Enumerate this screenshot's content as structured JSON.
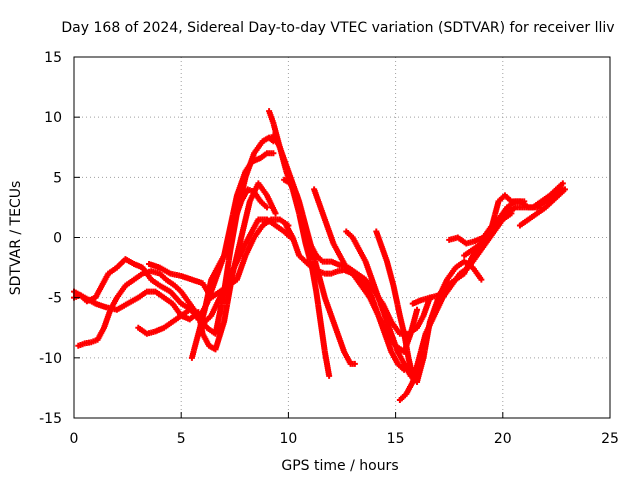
{
  "chart_data": {
    "type": "scatter",
    "title": "Day 168 of 2024, Sidereal Day-to-day VTEC variation (SDTVAR) for receiver lliv",
    "xlabel": "GPS time / hours",
    "ylabel": "SDTVAR / TECUs",
    "xlim": [
      0,
      25
    ],
    "ylim": [
      -15,
      15
    ],
    "xticks": [
      0,
      5,
      10,
      15,
      20,
      25
    ],
    "yticks": [
      -15,
      -10,
      -5,
      0,
      5,
      10,
      15
    ],
    "grid": true,
    "color": "#ff0000",
    "marker": "plus",
    "series": [
      {
        "x": [
          0.0,
          0.3,
          0.6,
          1.0,
          1.3,
          1.6,
          2.0,
          2.4,
          2.8,
          3.2,
          3.6,
          4.0,
          4.5,
          5.0,
          5.5,
          5.8,
          6.2,
          6.6,
          7.0,
          7.3,
          7.6,
          8.0,
          8.3,
          8.7,
          9.0,
          9.3
        ],
        "y": [
          -5.0,
          -4.8,
          -5.3,
          -5.0,
          -4.0,
          -3.0,
          -2.5,
          -1.8,
          -2.2,
          -2.5,
          -3.5,
          -4.0,
          -4.5,
          -5.5,
          -6.0,
          -6.8,
          -5.5,
          -3.5,
          -1.5,
          1.0,
          3.5,
          5.5,
          6.3,
          6.6,
          7.0,
          7.0
        ]
      },
      {
        "x": [
          0.2,
          0.5,
          0.8,
          1.1,
          1.4,
          1.7,
          2.0,
          2.4,
          2.8,
          3.2,
          3.6,
          4.0,
          4.3,
          4.7,
          5.0,
          5.4,
          5.8,
          6.2,
          6.6,
          7.0,
          7.3,
          7.6,
          8.0,
          8.4,
          8.8,
          9.1,
          9.3
        ],
        "y": [
          -9.0,
          -8.8,
          -8.7,
          -8.5,
          -7.5,
          -6.0,
          -5.0,
          -4.0,
          -3.5,
          -3.0,
          -2.8,
          -3.0,
          -3.5,
          -4.0,
          -4.5,
          -5.5,
          -6.5,
          -7.5,
          -8.0,
          -4.5,
          -1.0,
          2.0,
          5.0,
          7.0,
          8.0,
          8.3,
          8.0
        ]
      },
      {
        "x": [
          0.0,
          0.5,
          1.0,
          1.5,
          2.0,
          2.5,
          3.0,
          3.4,
          3.8,
          4.2,
          4.6,
          5.0,
          5.4,
          5.8,
          6.0,
          6.3,
          6.6,
          7.0,
          7.4,
          7.8,
          8.2,
          8.6,
          9.0,
          9.4
        ],
        "y": [
          -4.5,
          -5.0,
          -5.5,
          -5.8,
          -6.0,
          -5.5,
          -5.0,
          -4.5,
          -4.5,
          -5.0,
          -5.5,
          -6.5,
          -6.8,
          -6.2,
          -8.0,
          -9.0,
          -9.3,
          -7.0,
          -3.0,
          0.0,
          3.0,
          4.5,
          3.5,
          2.0
        ]
      },
      {
        "x": [
          3.0,
          3.4,
          3.8,
          4.2,
          4.6,
          5.0,
          5.4,
          5.8,
          6.1,
          6.4,
          6.8,
          7.2,
          7.6,
          8.0,
          8.3,
          8.6,
          9.0,
          9.4,
          9.8,
          10.1
        ],
        "y": [
          -7.5,
          -8.0,
          -7.8,
          -7.5,
          -7.0,
          -6.5,
          -6.0,
          -6.5,
          -7.0,
          -6.5,
          -5.0,
          -3.5,
          -2.0,
          -0.5,
          0.5,
          1.5,
          1.5,
          1.0,
          0.5,
          0.0
        ]
      },
      {
        "x": [
          3.5,
          4.0,
          4.5,
          5.0,
          5.5,
          6.0,
          6.4,
          6.8,
          7.2,
          7.6,
          8.0,
          8.4,
          8.8,
          9.2,
          9.6,
          10.0
        ],
        "y": [
          -2.2,
          -2.5,
          -3.0,
          -3.2,
          -3.5,
          -3.8,
          -5.0,
          -4.5,
          -4.0,
          -3.5,
          -1.5,
          0.0,
          1.0,
          1.5,
          1.5,
          1.0
        ]
      },
      {
        "x": [
          5.5,
          5.8,
          6.1,
          6.4,
          6.7,
          7.0,
          7.2,
          7.5,
          7.8,
          8.1,
          8.4,
          8.7,
          9.0
        ],
        "y": [
          -10.0,
          -8.0,
          -6.0,
          -3.5,
          -2.5,
          -1.5,
          0.0,
          1.5,
          3.0,
          4.0,
          3.8,
          3.0,
          2.5
        ]
      },
      {
        "x": [
          9.1,
          9.3,
          9.6,
          9.9,
          10.2,
          10.5,
          10.8,
          11.1,
          11.3,
          11.5,
          11.7,
          11.9
        ],
        "y": [
          10.5,
          9.5,
          7.5,
          5.5,
          4.0,
          2.0,
          -0.5,
          -2.5,
          -4.5,
          -7.0,
          -9.5,
          -11.5
        ]
      },
      {
        "x": [
          9.3,
          9.6,
          9.9,
          10.2,
          10.5,
          10.8,
          11.1,
          11.4,
          11.7,
          12.0,
          12.3,
          12.6,
          12.9,
          13.1
        ],
        "y": [
          8.5,
          7.5,
          6.0,
          4.5,
          3.0,
          1.0,
          -1.0,
          -3.0,
          -5.0,
          -6.5,
          -8.0,
          -9.5,
          -10.5,
          -10.5
        ]
      },
      {
        "x": [
          9.8,
          10.1,
          10.4,
          10.7,
          11.0,
          11.3,
          11.6,
          12.0,
          12.4,
          12.8,
          13.2,
          13.6,
          14.0,
          14.4,
          14.8,
          15.2,
          15.6,
          16.0,
          16.3,
          16.6
        ],
        "y": [
          4.8,
          4.5,
          3.5,
          1.5,
          -0.5,
          -1.5,
          -2.0,
          -2.0,
          -2.3,
          -2.5,
          -3.0,
          -3.5,
          -4.5,
          -5.5,
          -7.0,
          -8.0,
          -8.0,
          -7.5,
          -6.5,
          -5.0
        ]
      },
      {
        "x": [
          9.9,
          10.2,
          10.5,
          10.8,
          11.1,
          11.4,
          11.7,
          12.0,
          12.3,
          12.6,
          13.0,
          13.4,
          13.8,
          14.2,
          14.6,
          15.0,
          15.4,
          15.7,
          16.0
        ],
        "y": [
          1.0,
          0.0,
          -1.5,
          -2.0,
          -2.5,
          -2.8,
          -3.0,
          -3.0,
          -2.8,
          -2.7,
          -3.0,
          -4.0,
          -5.0,
          -6.5,
          -8.0,
          -9.0,
          -9.5,
          -8.0,
          -6.0
        ]
      },
      {
        "x": [
          11.2,
          11.5,
          11.8,
          12.1,
          12.4,
          12.7,
          13.0,
          13.3,
          13.6,
          13.9,
          14.2,
          14.5,
          14.8,
          15.1,
          15.4
        ],
        "y": [
          4.0,
          2.5,
          1.0,
          -0.5,
          -1.5,
          -2.5,
          -3.0,
          -3.5,
          -4.0,
          -5.0,
          -6.5,
          -8.0,
          -9.5,
          -10.5,
          -11.0
        ]
      },
      {
        "x": [
          12.7,
          13.0,
          13.3,
          13.6,
          13.9,
          14.2,
          14.5,
          14.8,
          15.1,
          15.4,
          15.7,
          16.0
        ],
        "y": [
          0.5,
          0.0,
          -1.0,
          -2.0,
          -3.5,
          -5.0,
          -6.5,
          -8.0,
          -9.5,
          -10.5,
          -11.5,
          -12.0
        ]
      },
      {
        "x": [
          14.1,
          14.3,
          14.6,
          14.9,
          15.2,
          15.4,
          15.6,
          15.8,
          16.0,
          16.3,
          16.6,
          17.0,
          17.4,
          17.8,
          18.2,
          18.6,
          19.0
        ],
        "y": [
          0.5,
          -0.5,
          -2.0,
          -4.0,
          -6.5,
          -8.0,
          -10.0,
          -11.5,
          -12.0,
          -10.0,
          -7.0,
          -5.0,
          -3.5,
          -2.5,
          -2.0,
          -2.5,
          -3.5
        ]
      },
      {
        "x": [
          15.2,
          15.5,
          15.8,
          16.1,
          16.4,
          16.8,
          17.2,
          17.6,
          18.0,
          18.4,
          18.8,
          19.2,
          19.6,
          20.0,
          20.4
        ],
        "y": [
          -13.5,
          -13.0,
          -12.0,
          -10.0,
          -8.0,
          -6.5,
          -5.0,
          -4.0,
          -3.0,
          -2.5,
          -1.5,
          -0.5,
          0.5,
          1.5,
          2.0
        ]
      },
      {
        "x": [
          15.8,
          16.2,
          16.6,
          17.0,
          17.4,
          17.8,
          18.2,
          18.6,
          19.0,
          19.4,
          19.8,
          20.2,
          20.6,
          21.0
        ],
        "y": [
          -5.5,
          -5.2,
          -5.0,
          -4.8,
          -4.0,
          -3.5,
          -3.0,
          -1.5,
          -0.5,
          0.5,
          1.5,
          2.5,
          3.0,
          3.0
        ]
      },
      {
        "x": [
          17.5,
          17.9,
          18.3,
          18.7,
          19.1,
          19.5,
          19.8,
          20.1,
          20.4,
          20.8,
          21.2,
          21.6,
          22.0,
          22.4,
          22.8
        ],
        "y": [
          -0.2,
          0.0,
          -0.5,
          -0.3,
          0.0,
          1.0,
          3.0,
          3.5,
          3.0,
          3.0,
          2.5,
          2.5,
          3.0,
          3.5,
          4.0
        ]
      },
      {
        "x": [
          18.2,
          18.6,
          19.0,
          19.4,
          19.8,
          20.2,
          20.6,
          21.0,
          21.4,
          21.8,
          22.2,
          22.5,
          22.8
        ],
        "y": [
          -1.5,
          -1.0,
          -0.5,
          0.5,
          1.5,
          2.0,
          2.5,
          2.5,
          2.5,
          3.0,
          3.5,
          4.0,
          4.5
        ]
      },
      {
        "x": [
          20.8,
          21.2,
          21.6,
          22.0,
          22.3,
          22.6,
          22.9
        ],
        "y": [
          1.0,
          1.5,
          2.0,
          2.5,
          3.0,
          3.5,
          4.0
        ]
      }
    ]
  }
}
